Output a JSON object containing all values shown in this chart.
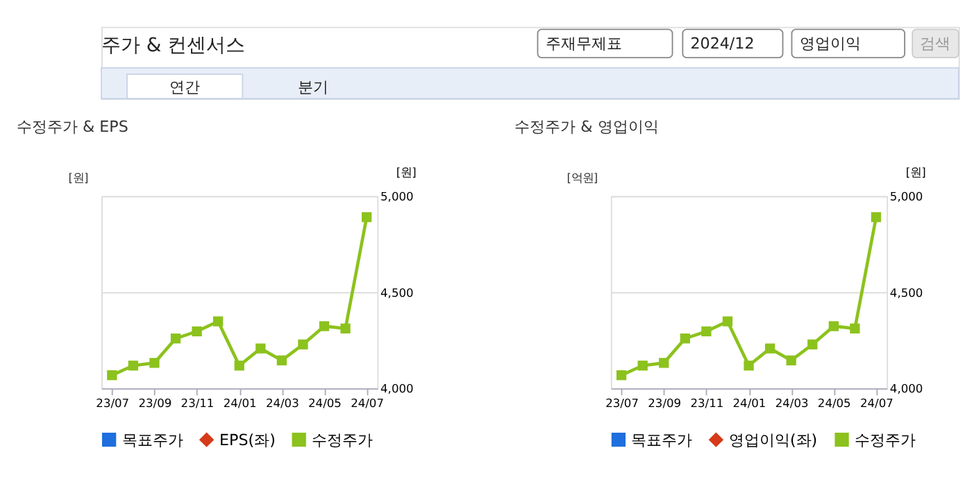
{
  "chart_data": [
    {
      "type": "other",
      "title": "주가 & 컨센서스",
      "annotations": [
        "주재무제표",
        "2024/12",
        "영업이익",
        "검색",
        "연간",
        "분기"
      ]
    },
    {
      "type": "line",
      "title": "수정주가 & EPS",
      "ylabel": "[원]",
      "y2label": "[원]",
      "categories": [
        "23/07",
        null,
        "23/09",
        null,
        "23/11",
        null,
        "24/01",
        null,
        "24/03",
        null,
        "24/05",
        null,
        "24/07"
      ],
      "series": [
        {
          "name": "목표주가",
          "type": "scatter",
          "marker": "square",
          "color": "#1f6fde",
          "values": [
            null,
            null,
            null,
            null,
            null,
            null,
            null,
            null,
            null,
            null,
            null,
            null,
            null
          ]
        },
        {
          "name": "EPS(좌)",
          "type": "line",
          "marker": "diamond",
          "color": "#d63a1a",
          "values": [
            null,
            null,
            null,
            null,
            null,
            null,
            null,
            null,
            null,
            null,
            null,
            null,
            null
          ]
        },
        {
          "name": "수정주가",
          "type": "line",
          "marker": "square",
          "axis": "y2",
          "color": "#8cc21d",
          "values": [
            4068,
            4118,
            4132,
            4259,
            4296,
            4348,
            4118,
            4207,
            4145,
            4228,
            4323,
            4311,
            4890
          ]
        }
      ],
      "y2lim": [
        4000,
        5000
      ],
      "y2ticks": [
        {
          "value": 4000,
          "label": "4,000"
        },
        {
          "value": 4500,
          "label": "4,500"
        },
        {
          "value": 5000,
          "label": "5,000"
        }
      ],
      "grid": "y",
      "legend": "bottom"
    },
    {
      "type": "line",
      "title": "수정주가 & 영업이익",
      "ylabel": "[억원]",
      "y2label": "[원]",
      "categories": [
        "23/07",
        null,
        "23/09",
        null,
        "23/11",
        null,
        "24/01",
        null,
        "24/03",
        null,
        "24/05",
        null,
        "24/07"
      ],
      "series": [
        {
          "name": "목표주가",
          "type": "scatter",
          "marker": "square",
          "color": "#1f6fde",
          "values": [
            null,
            null,
            null,
            null,
            null,
            null,
            null,
            null,
            null,
            null,
            null,
            null,
            null
          ]
        },
        {
          "name": "영업이익(좌)",
          "type": "line",
          "marker": "diamond",
          "color": "#d63a1a",
          "values": [
            null,
            null,
            null,
            null,
            null,
            null,
            null,
            null,
            null,
            null,
            null,
            null,
            null
          ]
        },
        {
          "name": "수정주가",
          "type": "line",
          "marker": "square",
          "axis": "y2",
          "color": "#8cc21d",
          "values": [
            4068,
            4118,
            4132,
            4259,
            4296,
            4348,
            4118,
            4207,
            4145,
            4228,
            4323,
            4311,
            4890
          ]
        }
      ],
      "y2lim": [
        4000,
        5000
      ],
      "y2ticks": [
        {
          "value": 4000,
          "label": "4,000"
        },
        {
          "value": 4500,
          "label": "4,500"
        },
        {
          "value": 5000,
          "label": "5,000"
        }
      ],
      "grid": "y",
      "legend": "bottom"
    }
  ]
}
